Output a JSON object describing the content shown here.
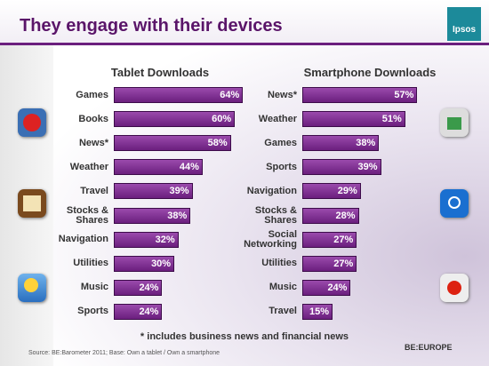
{
  "title": "They engage with their devices",
  "logo": "Ipsos",
  "footnote": "* includes business news and financial news",
  "source": "Source: BE:Barometer 2011; Base: Own a tablet / Own a smartphone",
  "brand": "BE:EUROPE",
  "chart_data": [
    {
      "type": "bar",
      "orientation": "horizontal",
      "title": "Tablet Downloads",
      "categories": [
        "Games",
        "Books",
        "News*",
        "Weather",
        "Travel",
        "Stocks &\nShares",
        "Navigation",
        "Utilities",
        "Music",
        "Sports"
      ],
      "values": [
        64,
        60,
        58,
        44,
        39,
        38,
        32,
        30,
        24,
        24
      ],
      "value_labels": [
        "64%",
        "60%",
        "58%",
        "44%",
        "39%",
        "38%",
        "32%",
        "30%",
        "24%",
        "24%"
      ],
      "color": "#6b1f7e"
    },
    {
      "type": "bar",
      "orientation": "horizontal",
      "title": "Smartphone Downloads",
      "categories": [
        "News*",
        "Weather",
        "Games",
        "Sports",
        "Navigation",
        "Stocks &\nShares",
        "Social\nNetworking",
        "Utilities",
        "Music",
        "Travel"
      ],
      "values": [
        57,
        51,
        38,
        39,
        29,
        28,
        27,
        27,
        24,
        15
      ],
      "value_labels": [
        "57%",
        "51%",
        "38%",
        "39%",
        "29%",
        "28%",
        "27%",
        "27%",
        "24%",
        "15%"
      ],
      "color": "#6b1f7e"
    }
  ]
}
